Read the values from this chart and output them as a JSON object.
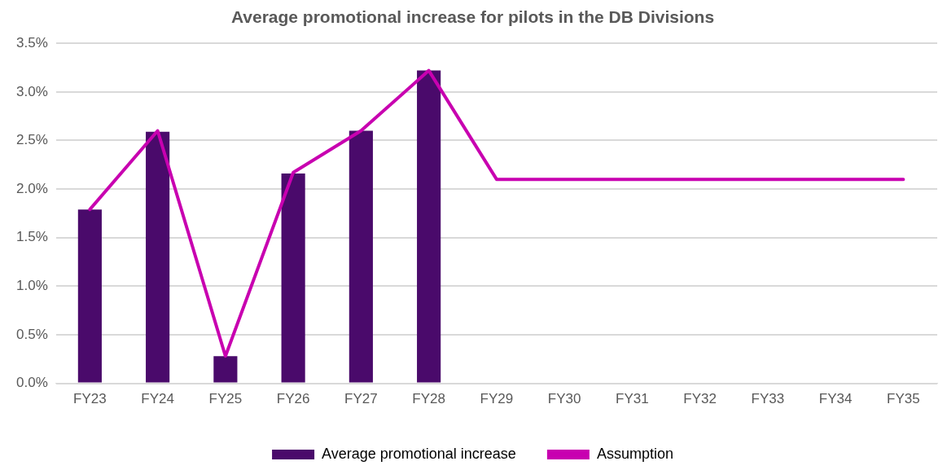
{
  "chart_data": {
    "type": "bar",
    "title": "Average promotional increase for pilots in the DB Divisions",
    "categories": [
      "FY23",
      "FY24",
      "FY25",
      "FY26",
      "FY27",
      "FY28",
      "FY29",
      "FY30",
      "FY31",
      "FY32",
      "FY33",
      "FY34",
      "FY35"
    ],
    "series": [
      {
        "name": "Average promotional increase",
        "color": "#4a0a6b",
        "values": [
          1.79,
          2.59,
          0.28,
          2.16,
          2.6,
          3.22,
          null,
          null,
          null,
          null,
          null,
          null,
          null
        ]
      },
      {
        "name": "Assumption",
        "type": "line",
        "color": "#c800b0",
        "values": [
          1.79,
          2.6,
          0.28,
          2.17,
          2.6,
          3.22,
          2.1,
          2.1,
          2.1,
          2.1,
          2.1,
          2.1,
          2.1
        ]
      }
    ],
    "ylim": [
      0,
      3.5
    ],
    "yticks": [
      {
        "value": 0,
        "label": "0.0%"
      },
      {
        "value": 0.5,
        "label": "0.5%"
      },
      {
        "value": 1,
        "label": "1.0%"
      },
      {
        "value": 1.5,
        "label": "1.5%"
      },
      {
        "value": 2,
        "label": "2.0%"
      },
      {
        "value": 2.5,
        "label": "2.5%"
      },
      {
        "value": 3,
        "label": "3.0%"
      },
      {
        "value": 3.5,
        "label": "3.5%"
      }
    ],
    "grid": "y",
    "legend": "bottom",
    "marker": "none"
  }
}
